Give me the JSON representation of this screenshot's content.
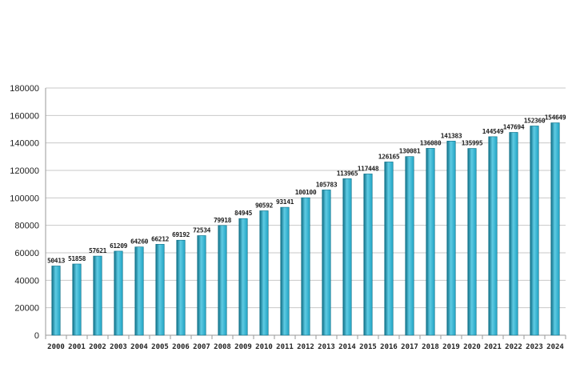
{
  "chart_data": {
    "type": "bar",
    "title": "",
    "xlabel": "",
    "ylabel": "",
    "ylim": [
      0,
      180000
    ],
    "yticks": [
      0,
      20000,
      40000,
      60000,
      80000,
      100000,
      120000,
      140000,
      160000,
      180000
    ],
    "grid": true,
    "bar_color": "#22a4c4",
    "bar_dark_color": "#0f6f87",
    "bar_light_color": "#5fcbe3",
    "categories": [
      "2000",
      "2001",
      "2002",
      "2003",
      "2004",
      "2005",
      "2006",
      "2007",
      "2008",
      "2009",
      "2010",
      "2011",
      "2012",
      "2013",
      "2014",
      "2015",
      "2016",
      "2017",
      "2018",
      "2019",
      "2020",
      "2021",
      "2022",
      "2023",
      "2024"
    ],
    "values": [
      50413,
      51858,
      57621,
      61209,
      64260,
      66212,
      69192,
      72534,
      79918,
      84945,
      90592,
      93141,
      100100,
      105783,
      113965,
      117448,
      126165,
      130081,
      136080,
      141383,
      135995,
      144549,
      147694,
      152360,
      154649
    ]
  }
}
